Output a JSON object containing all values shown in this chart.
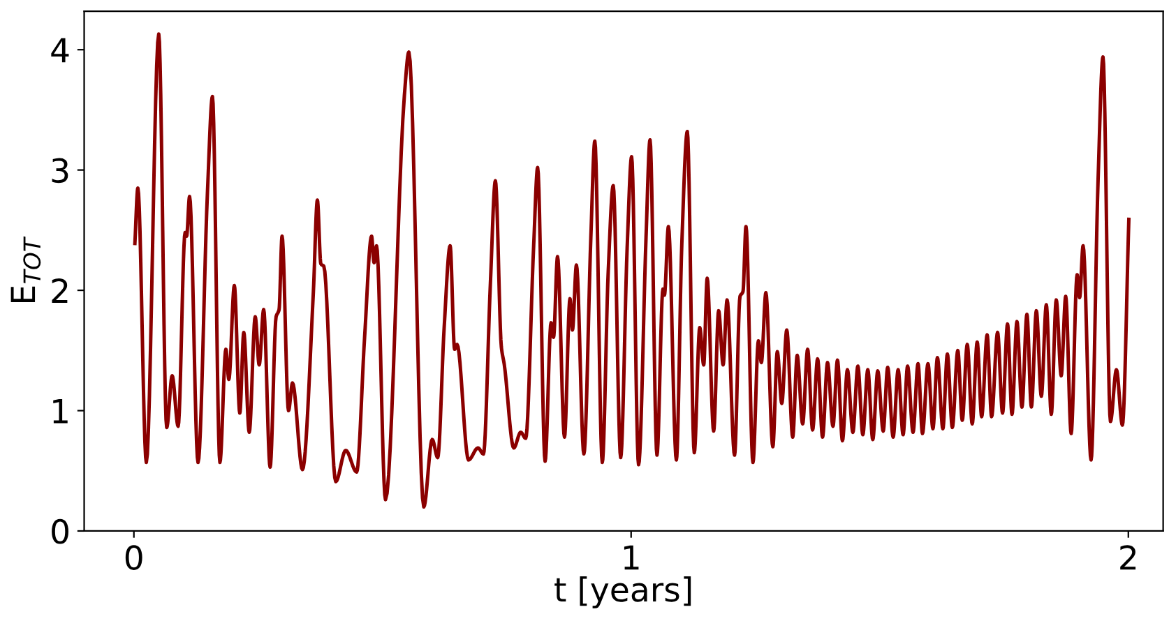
{
  "chart_data": {
    "type": "line",
    "xlabel": "t [years]",
    "ylabel": "E$_{TOT}$",
    "xlim": [
      -0.1,
      2.07
    ],
    "ylim": [
      0,
      4.32
    ],
    "xticks": [
      0,
      1,
      2
    ],
    "yticks": [
      0,
      1,
      2,
      3,
      4
    ],
    "grid": false,
    "legend": false,
    "series": [
      {
        "color": "#8b0000",
        "x": [
          0.002,
          0.008,
          0.025,
          0.05,
          0.066,
          0.077,
          0.089,
          0.103,
          0.106,
          0.112,
          0.129,
          0.148,
          0.158,
          0.173,
          0.185,
          0.191,
          0.202,
          0.213,
          0.221,
          0.232,
          0.244,
          0.252,
          0.261,
          0.274,
          0.286,
          0.292,
          0.298,
          0.311,
          0.319,
          0.339,
          0.361,
          0.369,
          0.376,
          0.382,
          0.406,
          0.426,
          0.448,
          0.464,
          0.478,
          0.483,
          0.488,
          0.506,
          0.544,
          0.553,
          0.583,
          0.6,
          0.611,
          0.624,
          0.636,
          0.645,
          0.65,
          0.673,
          0.692,
          0.703,
          0.717,
          0.727,
          0.739,
          0.745,
          0.764,
          0.778,
          0.788,
          0.804,
          0.812,
          0.827,
          0.839,
          0.844,
          0.852,
          0.866,
          0.877,
          0.882,
          0.89,
          0.905,
          0.919,
          0.927,
          0.942,
          0.954,
          0.964,
          0.979,
          0.992,
          1.001,
          1.015,
          1.03,
          1.038,
          1.052,
          1.064,
          1.067,
          1.075,
          1.091,
          1.102,
          1.113,
          1.127,
          1.138,
          1.146,
          1.153,
          1.166,
          1.176,
          1.185,
          1.193,
          1.208,
          1.219,
          1.225,
          1.231,
          1.245,
          1.256,
          1.262,
          1.271,
          1.285,
          1.294,
          1.303,
          1.313,
          1.325,
          1.334,
          1.345,
          1.355,
          1.365,
          1.375,
          1.385,
          1.395,
          1.406,
          1.415,
          1.425,
          1.435,
          1.446,
          1.456,
          1.466,
          1.476,
          1.486,
          1.496,
          1.507,
          1.516,
          1.527,
          1.537,
          1.547,
          1.556,
          1.567,
          1.577,
          1.586,
          1.597,
          1.607,
          1.616,
          1.627,
          1.636,
          1.646,
          1.657,
          1.666,
          1.676,
          1.686,
          1.696,
          1.705,
          1.716,
          1.725,
          1.737,
          1.747,
          1.757,
          1.766,
          1.776,
          1.786,
          1.796,
          1.805,
          1.815,
          1.825,
          1.835,
          1.845,
          1.855,
          1.865,
          1.874,
          1.885,
          1.897,
          1.902,
          1.909,
          1.925,
          1.939,
          1.949,
          1.964,
          1.976,
          1.988,
          2.001
        ],
        "values": [
          2.39,
          2.85,
          0.57,
          4.13,
          0.86,
          1.29,
          0.87,
          2.48,
          2.45,
          2.78,
          0.57,
          2.82,
          3.61,
          0.57,
          1.51,
          1.26,
          2.04,
          0.98,
          1.65,
          0.82,
          1.78,
          1.38,
          1.84,
          0.53,
          1.78,
          1.84,
          2.45,
          1.0,
          1.23,
          0.51,
          1.99,
          2.75,
          2.22,
          2.2,
          0.41,
          0.67,
          0.49,
          1.61,
          2.45,
          2.23,
          2.37,
          0.26,
          3.62,
          3.98,
          0.2,
          0.76,
          0.61,
          1.69,
          2.37,
          1.51,
          1.55,
          0.59,
          0.69,
          0.64,
          2.06,
          2.91,
          1.53,
          1.38,
          0.69,
          0.82,
          0.77,
          2.37,
          3.02,
          0.58,
          1.73,
          1.61,
          2.28,
          0.78,
          1.93,
          1.67,
          2.21,
          0.64,
          2.44,
          3.24,
          0.57,
          2.16,
          2.87,
          0.61,
          2.35,
          3.11,
          0.55,
          2.44,
          3.25,
          0.63,
          2.01,
          1.96,
          2.53,
          0.59,
          2.39,
          3.32,
          0.65,
          1.69,
          1.38,
          2.1,
          0.83,
          1.83,
          1.38,
          1.92,
          0.63,
          1.95,
          1.99,
          2.53,
          0.57,
          1.58,
          1.4,
          1.98,
          0.7,
          1.49,
          1.06,
          1.67,
          0.78,
          1.46,
          0.89,
          1.51,
          0.84,
          1.43,
          0.78,
          1.4,
          0.87,
          1.42,
          0.75,
          1.34,
          0.82,
          1.37,
          0.8,
          1.34,
          0.76,
          1.33,
          0.83,
          1.36,
          0.78,
          1.34,
          0.8,
          1.37,
          0.82,
          1.39,
          0.81,
          1.39,
          0.85,
          1.44,
          0.85,
          1.47,
          0.86,
          1.5,
          0.92,
          1.55,
          0.89,
          1.57,
          0.95,
          1.63,
          0.95,
          1.65,
          0.98,
          1.72,
          0.97,
          1.74,
          1.03,
          1.8,
          1.03,
          1.83,
          1.12,
          1.88,
          0.97,
          1.92,
          1.29,
          1.95,
          0.81,
          2.13,
          1.94,
          2.37,
          0.59,
          2.9,
          3.94,
          0.91,
          1.34,
          0.88,
          2.59
        ]
      }
    ]
  }
}
